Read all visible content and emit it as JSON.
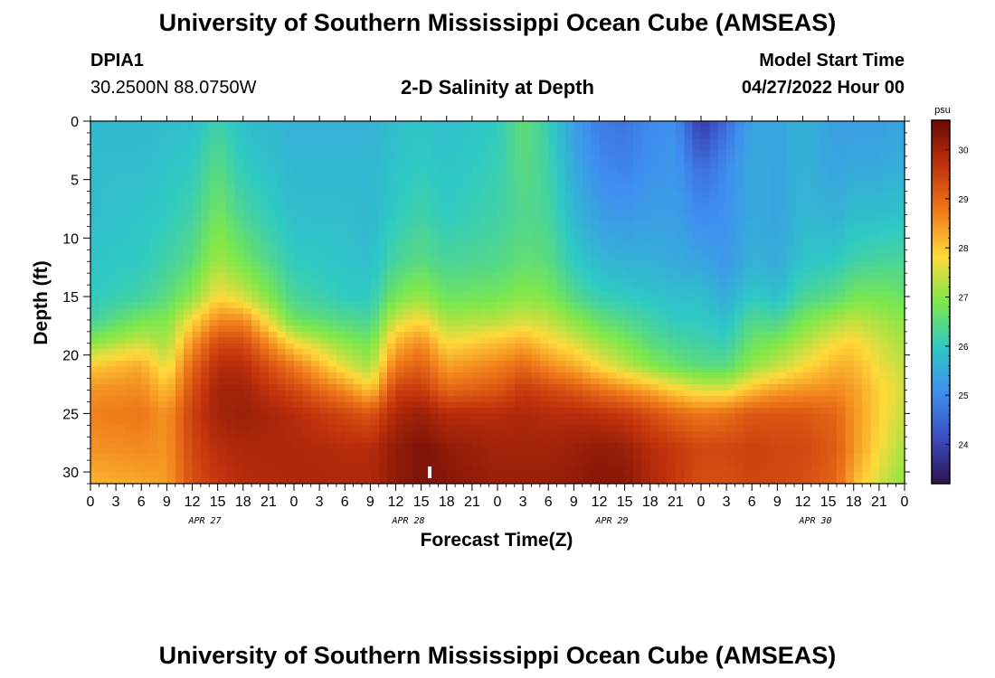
{
  "header": {
    "title": "University of Southern Mississippi Ocean Cube (AMSEAS)",
    "station_id": "DPIA1",
    "coordinates": "30.2500N  88.0750W",
    "subtitle": "2-D Salinity at Depth",
    "start_label": "Model Start Time",
    "start_value": "04/27/2022 Hour 00"
  },
  "footer": {
    "title": "University of Southern Mississippi Ocean Cube (AMSEAS)"
  },
  "chart_data": {
    "type": "heatmap",
    "title": "2-D Salinity at Depth",
    "xlabel": "Forecast Time(Z)",
    "ylabel": "Depth (ft)",
    "x_hours_range": [
      0,
      96
    ],
    "x_tick_labels": [
      "0",
      "3",
      "6",
      "9",
      "12",
      "15",
      "18",
      "21",
      "0",
      "3",
      "6",
      "9",
      "12",
      "15",
      "18",
      "21",
      "0",
      "3",
      "6",
      "9",
      "12",
      "15",
      "18",
      "21",
      "0",
      "3",
      "6",
      "9",
      "12",
      "15",
      "18",
      "21",
      "0"
    ],
    "date_labels": [
      {
        "label": "APR 27",
        "hour": 12
      },
      {
        "label": "APR 28",
        "hour": 36
      },
      {
        "label": "APR 29",
        "hour": 60
      },
      {
        "label": "APR 30",
        "hour": 84
      }
    ],
    "y_range_ft": [
      0,
      31
    ],
    "y_ticks": [
      0,
      5,
      10,
      15,
      20,
      25,
      30
    ],
    "y_tick_labels": [
      "0",
      "5",
      "10",
      "15",
      "20",
      "25",
      "30"
    ],
    "colorbar": {
      "unit": "psu",
      "min": 23.2,
      "max": 30.6,
      "ticks": [
        24,
        25,
        26,
        27,
        28,
        29,
        30
      ],
      "tick_labels": [
        "24",
        "25",
        "26",
        "27",
        "28",
        "29",
        "30"
      ],
      "colors": [
        "#2b1450",
        "#3b4cc0",
        "#3f8ef0",
        "#2ec9c4",
        "#7de84a",
        "#ffd93a",
        "#f07a1a",
        "#c2320c",
        "#6b0a06"
      ]
    },
    "hours": [
      0,
      6,
      9,
      12,
      15,
      18,
      24,
      30,
      33,
      36,
      39,
      42,
      48,
      51,
      54,
      57,
      60,
      63,
      66,
      69,
      72,
      75,
      78,
      81,
      84,
      88,
      90,
      93,
      96
    ],
    "depths_ft": [
      0,
      4,
      8,
      12,
      15,
      17,
      19,
      21,
      23,
      25,
      28,
      31
    ],
    "values": [
      [
        25.7,
        25.8,
        25.8,
        25.9,
        26.0,
        26.2,
        27.0,
        28.0,
        28.5,
        28.7,
        28.5,
        28.2
      ],
      [
        25.7,
        25.8,
        25.9,
        26.0,
        26.2,
        26.8,
        27.5,
        28.3,
        28.6,
        28.8,
        28.6,
        28.3
      ],
      [
        25.8,
        25.9,
        26.0,
        26.2,
        26.5,
        26.9,
        27.2,
        27.6,
        28.1,
        28.5,
        28.5,
        28.4
      ],
      [
        25.8,
        26.0,
        26.2,
        26.5,
        27.0,
        27.8,
        28.5,
        29.0,
        29.3,
        29.5,
        29.4,
        29.3
      ],
      [
        26.2,
        26.5,
        26.8,
        27.2,
        27.8,
        28.6,
        29.4,
        29.8,
        30.0,
        30.0,
        29.8,
        29.6
      ],
      [
        25.8,
        26.0,
        26.3,
        26.8,
        27.5,
        28.6,
        29.4,
        29.8,
        30.0,
        30.1,
        29.9,
        29.8
      ],
      [
        25.6,
        25.7,
        25.8,
        26.0,
        26.3,
        26.7,
        27.8,
        28.8,
        29.4,
        29.8,
        29.9,
        29.9
      ],
      [
        25.6,
        25.7,
        25.8,
        25.9,
        26.0,
        26.4,
        27.0,
        27.6,
        28.6,
        29.4,
        29.8,
        29.9
      ],
      [
        25.6,
        25.7,
        25.7,
        25.8,
        26.0,
        26.3,
        26.8,
        27.2,
        28.0,
        29.2,
        29.8,
        29.9
      ],
      [
        25.8,
        25.9,
        26.0,
        26.3,
        26.8,
        27.5,
        28.2,
        28.8,
        29.5,
        29.9,
        30.2,
        30.2
      ],
      [
        25.9,
        26.0,
        26.2,
        26.5,
        27.1,
        27.8,
        28.6,
        29.1,
        29.6,
        30.1,
        30.4,
        30.4
      ],
      [
        25.8,
        25.9,
        26.0,
        26.3,
        26.7,
        27.2,
        27.8,
        28.4,
        29.0,
        29.8,
        30.2,
        30.3
      ],
      [
        26.0,
        26.1,
        26.2,
        26.4,
        26.8,
        27.3,
        28.1,
        28.7,
        29.2,
        29.8,
        30.0,
        30.1
      ],
      [
        26.6,
        26.5,
        26.4,
        26.6,
        27.0,
        27.5,
        28.3,
        29.0,
        29.6,
        29.9,
        30.0,
        30.1
      ],
      [
        26.1,
        26.2,
        26.3,
        26.5,
        26.9,
        27.4,
        27.9,
        28.6,
        29.4,
        29.8,
        30.0,
        30.1
      ],
      [
        25.3,
        25.5,
        25.7,
        26.0,
        26.4,
        27.0,
        27.6,
        28.3,
        29.2,
        29.8,
        30.1,
        30.2
      ],
      [
        24.8,
        25.0,
        25.3,
        25.7,
        26.1,
        26.6,
        27.2,
        27.8,
        28.9,
        29.7,
        30.2,
        30.3
      ],
      [
        24.7,
        24.9,
        25.2,
        25.6,
        26.0,
        26.4,
        26.9,
        27.4,
        28.6,
        29.6,
        30.1,
        30.3
      ],
      [
        25.0,
        25.1,
        25.3,
        25.6,
        25.9,
        26.2,
        26.5,
        27.0,
        28.3,
        29.3,
        29.8,
        29.9
      ],
      [
        25.1,
        25.2,
        25.3,
        25.5,
        25.8,
        26.0,
        26.3,
        26.7,
        27.9,
        29.0,
        29.6,
        29.6
      ],
      [
        23.8,
        24.6,
        25.0,
        25.4,
        25.8,
        26.0,
        26.2,
        26.5,
        27.6,
        28.8,
        29.4,
        29.3
      ],
      [
        24.6,
        25.0,
        25.1,
        25.2,
        25.5,
        25.8,
        26.1,
        26.5,
        27.6,
        28.9,
        29.4,
        29.3
      ],
      [
        25.4,
        25.5,
        25.5,
        25.6,
        26.0,
        26.4,
        26.7,
        27.1,
        28.1,
        29.2,
        29.5,
        29.4
      ],
      [
        25.4,
        25.4,
        25.4,
        25.5,
        25.8,
        26.3,
        26.9,
        27.4,
        28.4,
        29.2,
        29.4,
        29.4
      ],
      [
        25.6,
        25.6,
        25.7,
        25.9,
        26.3,
        26.8,
        27.3,
        27.8,
        28.5,
        29.2,
        29.4,
        29.3
      ],
      [
        25.3,
        25.4,
        25.6,
        26.0,
        26.5,
        27.2,
        27.8,
        28.2,
        28.6,
        29.0,
        29.1,
        29.0
      ],
      [
        25.3,
        25.5,
        25.8,
        26.2,
        26.8,
        27.4,
        27.9,
        28.2,
        28.4,
        28.5,
        28.5,
        28.2
      ],
      [
        25.3,
        25.5,
        25.8,
        26.3,
        26.8,
        27.2,
        27.5,
        27.7,
        27.9,
        27.9,
        27.8,
        27.5
      ],
      [
        25.4,
        25.6,
        25.9,
        26.3,
        26.7,
        27.0,
        27.2,
        27.4,
        27.5,
        27.4,
        27.2,
        27.0
      ]
    ]
  }
}
